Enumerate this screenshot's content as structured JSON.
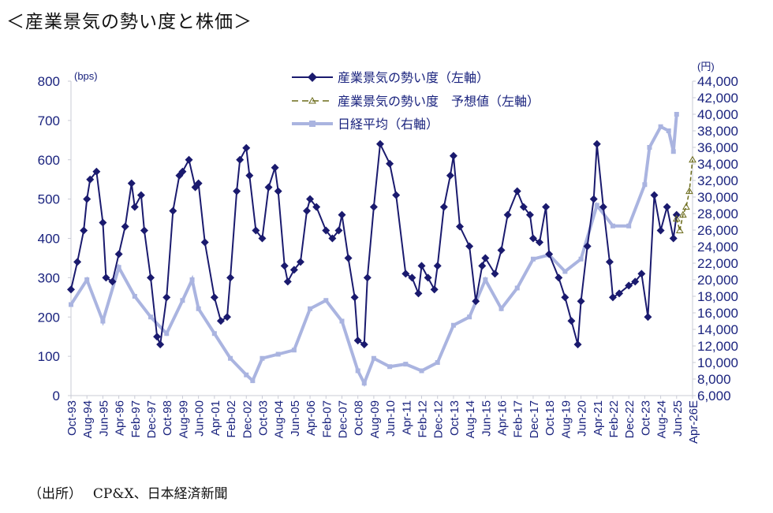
{
  "title": "＜産業景気の勢い度と株価＞",
  "source": "（出所）　 CP&X、日本経済新聞",
  "chart_data": {
    "type": "line",
    "y_left": {
      "unit": "(bps)",
      "range": [
        0,
        800
      ],
      "ticks": [
        "0",
        "100",
        "200",
        "300",
        "400",
        "500",
        "600",
        "700",
        "800"
      ]
    },
    "y_right": {
      "unit": "(円)",
      "range": [
        6000,
        44000
      ],
      "ticks": [
        "6,000",
        "8,000",
        "10,000",
        "12,000",
        "14,000",
        "16,000",
        "18,000",
        "20,000",
        "22,000",
        "24,000",
        "26,000",
        "28,000",
        "30,000",
        "32,000",
        "34,000",
        "36,000",
        "38,000",
        "40,000",
        "42,000",
        "44,000"
      ]
    },
    "x_ticks": [
      "Oct-93",
      "Aug-94",
      "Jun-95",
      "Apr-96",
      "Feb-97",
      "Dec-97",
      "Oct-98",
      "Aug-99",
      "Jun-00",
      "Apr-01",
      "Feb-02",
      "Dec-02",
      "Oct-03",
      "Aug-04",
      "Jun-05",
      "Apr-06",
      "Feb-07",
      "Dec-07",
      "Oct-08",
      "Aug-09",
      "Jun-10",
      "Apr-11",
      "Feb-12",
      "Dec-12",
      "Oct-13",
      "Aug-14",
      "Jun-15",
      "Apr-16",
      "Feb-17",
      "Dec-17",
      "Oct-18",
      "Aug-19",
      "Jun-20",
      "Apr-21",
      "Feb-22",
      "Dec-22",
      "Oct-23",
      "Aug-24",
      "Jun-25",
      "Apr-26E"
    ],
    "colors": {
      "momentum": "#1a1a6e",
      "forecast": "#6b6b1a",
      "nikkei": "#aab4e0"
    },
    "series": [
      {
        "name": "産業景気の勢い度（左軸）",
        "axis": "left",
        "points": [
          [
            "Oct-93",
            270
          ],
          [
            "Feb-94",
            340
          ],
          [
            "Jun-94",
            420
          ],
          [
            "Aug-94",
            500
          ],
          [
            "Oct-94",
            550
          ],
          [
            "Feb-95",
            570
          ],
          [
            "Jun-95",
            440
          ],
          [
            "Aug-95",
            300
          ],
          [
            "Dec-95",
            290
          ],
          [
            "Apr-96",
            360
          ],
          [
            "Aug-96",
            430
          ],
          [
            "Dec-96",
            540
          ],
          [
            "Feb-97",
            480
          ],
          [
            "Jun-97",
            510
          ],
          [
            "Aug-97",
            420
          ],
          [
            "Dec-97",
            300
          ],
          [
            "Apr-98",
            150
          ],
          [
            "Jun-98",
            130
          ],
          [
            "Oct-98",
            250
          ],
          [
            "Feb-99",
            470
          ],
          [
            "Jun-99",
            560
          ],
          [
            "Aug-99",
            570
          ],
          [
            "Dec-99",
            600
          ],
          [
            "Apr-00",
            530
          ],
          [
            "Jun-00",
            540
          ],
          [
            "Oct-00",
            390
          ],
          [
            "Apr-01",
            250
          ],
          [
            "Aug-01",
            190
          ],
          [
            "Dec-01",
            200
          ],
          [
            "Feb-02",
            300
          ],
          [
            "Jun-02",
            520
          ],
          [
            "Aug-02",
            600
          ],
          [
            "Dec-02",
            630
          ],
          [
            "Feb-03",
            560
          ],
          [
            "Jun-03",
            420
          ],
          [
            "Oct-03",
            400
          ],
          [
            "Feb-04",
            530
          ],
          [
            "Jun-04",
            580
          ],
          [
            "Aug-04",
            520
          ],
          [
            "Dec-04",
            330
          ],
          [
            "Feb-05",
            290
          ],
          [
            "Jun-05",
            320
          ],
          [
            "Oct-05",
            340
          ],
          [
            "Feb-06",
            470
          ],
          [
            "Apr-06",
            500
          ],
          [
            "Aug-06",
            480
          ],
          [
            "Feb-07",
            420
          ],
          [
            "Jun-07",
            400
          ],
          [
            "Oct-07",
            420
          ],
          [
            "Dec-07",
            460
          ],
          [
            "Apr-08",
            350
          ],
          [
            "Aug-08",
            250
          ],
          [
            "Oct-08",
            140
          ],
          [
            "Feb-09",
            130
          ],
          [
            "Apr-09",
            300
          ],
          [
            "Aug-09",
            480
          ],
          [
            "Dec-09",
            640
          ],
          [
            "Jun-10",
            590
          ],
          [
            "Oct-10",
            510
          ],
          [
            "Apr-11",
            310
          ],
          [
            "Aug-11",
            300
          ],
          [
            "Dec-11",
            260
          ],
          [
            "Feb-12",
            330
          ],
          [
            "Jun-12",
            300
          ],
          [
            "Oct-12",
            270
          ],
          [
            "Dec-12",
            330
          ],
          [
            "Apr-13",
            480
          ],
          [
            "Aug-13",
            560
          ],
          [
            "Oct-13",
            610
          ],
          [
            "Feb-14",
            430
          ],
          [
            "Aug-14",
            380
          ],
          [
            "Dec-14",
            240
          ],
          [
            "Apr-15",
            330
          ],
          [
            "Jun-15",
            350
          ],
          [
            "Dec-15",
            310
          ],
          [
            "Apr-16",
            370
          ],
          [
            "Aug-16",
            460
          ],
          [
            "Feb-17",
            520
          ],
          [
            "Jun-17",
            480
          ],
          [
            "Oct-17",
            460
          ],
          [
            "Dec-17",
            400
          ],
          [
            "Apr-18",
            390
          ],
          [
            "Aug-18",
            480
          ],
          [
            "Oct-18",
            360
          ],
          [
            "Apr-19",
            300
          ],
          [
            "Aug-19",
            250
          ],
          [
            "Dec-19",
            190
          ],
          [
            "Apr-20",
            130
          ],
          [
            "Jun-20",
            240
          ],
          [
            "Oct-20",
            380
          ],
          [
            "Feb-21",
            500
          ],
          [
            "Apr-21",
            640
          ],
          [
            "Aug-21",
            480
          ],
          [
            "Dec-21",
            340
          ],
          [
            "Feb-22",
            250
          ],
          [
            "Jun-22",
            260
          ],
          [
            "Dec-22",
            280
          ],
          [
            "Apr-23",
            290
          ],
          [
            "Aug-23",
            310
          ],
          [
            "Dec-23",
            200
          ],
          [
            "Apr-24",
            510
          ],
          [
            "Aug-24",
            420
          ],
          [
            "Dec-24",
            480
          ],
          [
            "Apr-25",
            400
          ],
          [
            "Jun-25",
            460
          ]
        ]
      },
      {
        "name": "産業景気の勢い度　予想値（左軸）",
        "axis": "left",
        "points": [
          [
            "Jun-25",
            450
          ],
          [
            "Aug-25",
            420
          ],
          [
            "Oct-25",
            460
          ],
          [
            "Dec-25",
            480
          ],
          [
            "Feb-26",
            520
          ],
          [
            "Apr-26E",
            600
          ]
        ]
      },
      {
        "name": "日経平均（右軸）",
        "axis": "right",
        "points": [
          [
            "Oct-93",
            17000
          ],
          [
            "Aug-94",
            20000
          ],
          [
            "Jun-95",
            15000
          ],
          [
            "Apr-96",
            21500
          ],
          [
            "Feb-97",
            18000
          ],
          [
            "Dec-97",
            15500
          ],
          [
            "Oct-98",
            13500
          ],
          [
            "Aug-99",
            17500
          ],
          [
            "Feb-00",
            20000
          ],
          [
            "Jun-00",
            16500
          ],
          [
            "Apr-01",
            13500
          ],
          [
            "Feb-02",
            10500
          ],
          [
            "Dec-02",
            8500
          ],
          [
            "Apr-03",
            7800
          ],
          [
            "Oct-03",
            10500
          ],
          [
            "Aug-04",
            11000
          ],
          [
            "Jun-05",
            11500
          ],
          [
            "Apr-06",
            16500
          ],
          [
            "Feb-07",
            17500
          ],
          [
            "Dec-07",
            15000
          ],
          [
            "Oct-08",
            9000
          ],
          [
            "Feb-09",
            7500
          ],
          [
            "Aug-09",
            10500
          ],
          [
            "Jun-10",
            9500
          ],
          [
            "Apr-11",
            9800
          ],
          [
            "Feb-12",
            9000
          ],
          [
            "Dec-12",
            10000
          ],
          [
            "Oct-13",
            14500
          ],
          [
            "Aug-14",
            15500
          ],
          [
            "Jun-15",
            20000
          ],
          [
            "Apr-16",
            16500
          ],
          [
            "Feb-17",
            19000
          ],
          [
            "Dec-17",
            22500
          ],
          [
            "Oct-18",
            23000
          ],
          [
            "Aug-19",
            21000
          ],
          [
            "Jun-20",
            22500
          ],
          [
            "Apr-21",
            29000
          ],
          [
            "Feb-22",
            26500
          ],
          [
            "Dec-22",
            26500
          ],
          [
            "Oct-23",
            31500
          ],
          [
            "Jan-24",
            36000
          ],
          [
            "Aug-24",
            38500
          ],
          [
            "Jan-25",
            38000
          ],
          [
            "Apr-25",
            35500
          ],
          [
            "Jun-25",
            40000
          ]
        ]
      }
    ]
  }
}
